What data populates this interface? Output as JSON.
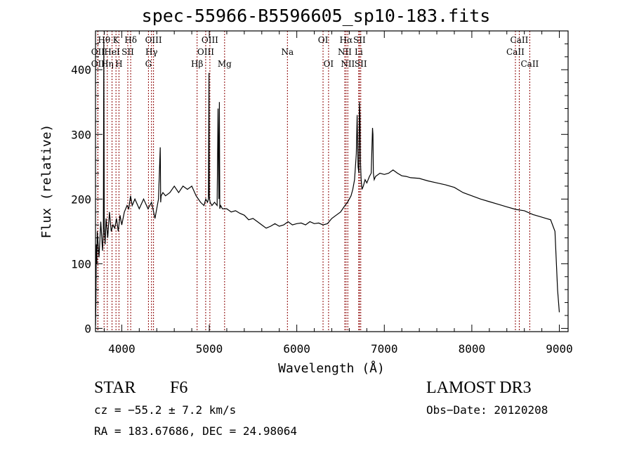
{
  "chart_data": {
    "type": "line",
    "title": "spec-55966-B5596605_sp10-183.fits",
    "xlabel": "Wavelength (Å)",
    "ylabel": "Flux (relative)",
    "xlim": [
      3700,
      9100
    ],
    "ylim": [
      -5,
      460
    ],
    "x_ticks": [
      4000,
      5000,
      6000,
      7000,
      8000,
      9000
    ],
    "y_ticks": [
      0,
      100,
      200,
      300,
      400
    ],
    "grid": false,
    "legend": "none",
    "series": [
      {
        "x": [
          3700,
          3705,
          3710,
          3715,
          3720,
          3740,
          3760,
          3780,
          3790,
          3795,
          3800,
          3810,
          3820,
          3840,
          3860,
          3880,
          3900,
          3920,
          3940,
          3960,
          3980,
          4000,
          4030,
          4060,
          4080,
          4100,
          4120,
          4150,
          4200,
          4250,
          4300,
          4340,
          4380,
          4420,
          4440,
          4445,
          4450,
          4470,
          4500,
          4550,
          4600,
          4650,
          4700,
          4750,
          4800,
          4850,
          4900,
          4940,
          4960,
          4980,
          4990,
          4997,
          5000,
          5003,
          5010,
          5030,
          5060,
          5090,
          5100,
          5110,
          5115,
          5120,
          5130,
          5150,
          5200,
          5250,
          5300,
          5350,
          5400,
          5450,
          5500,
          5550,
          5600,
          5650,
          5700,
          5750,
          5800,
          5850,
          5900,
          5950,
          6000,
          6050,
          6100,
          6150,
          6200,
          6250,
          6300,
          6350,
          6400,
          6450,
          6500,
          6550,
          6580,
          6600,
          6620,
          6640,
          6660,
          6680,
          6690,
          6700,
          6710,
          6716,
          6722,
          6728,
          6735,
          6745,
          6760,
          6780,
          6800,
          6830,
          6850,
          6865,
          6870,
          6875,
          6885,
          6900,
          6950,
          7000,
          7050,
          7100,
          7150,
          7200,
          7250,
          7300,
          7400,
          7500,
          7600,
          7700,
          7800,
          7900,
          8000,
          8100,
          8200,
          8300,
          8400,
          8500,
          8600,
          8700,
          8800,
          8850,
          8900,
          8950,
          8980,
          9000
        ],
        "y": [
          5,
          40,
          130,
          100,
          150,
          110,
          165,
          120,
          150,
          445,
          155,
          130,
          170,
          140,
          180,
          150,
          160,
          155,
          170,
          150,
          175,
          160,
          180,
          190,
          185,
          205,
          190,
          200,
          185,
          200,
          185,
          195,
          170,
          200,
          280,
          195,
          205,
          210,
          205,
          210,
          220,
          210,
          220,
          215,
          220,
          205,
          195,
          190,
          200,
          195,
          200,
          395,
          205,
          200,
          195,
          190,
          195,
          190,
          340,
          200,
          350,
          185,
          190,
          185,
          185,
          180,
          182,
          178,
          175,
          168,
          170,
          165,
          160,
          155,
          158,
          162,
          158,
          160,
          165,
          160,
          162,
          163,
          160,
          165,
          162,
          163,
          160,
          162,
          170,
          175,
          180,
          190,
          195,
          200,
          205,
          215,
          230,
          270,
          330,
          250,
          240,
          350,
          330,
          255,
          230,
          215,
          220,
          230,
          225,
          235,
          240,
          310,
          300,
          240,
          230,
          235,
          240,
          238,
          240,
          245,
          240,
          236,
          235,
          233,
          232,
          228,
          225,
          222,
          218,
          210,
          205,
          200,
          196,
          192,
          188,
          184,
          182,
          176,
          172,
          170,
          168,
          150,
          60,
          25
        ]
      }
    ],
    "annotations": [
      {
        "label": "Hθ",
        "x": 3798,
        "row": 1,
        "color": "#8b0000"
      },
      {
        "label": "OII",
        "x": 3727,
        "row": 2,
        "color": "#8b0000"
      },
      {
        "label": "OII",
        "x": 3727,
        "row": 3,
        "color": "#8b0000"
      },
      {
        "label": "Hη",
        "x": 3835,
        "row": 3,
        "color": "#8b0000"
      },
      {
        "label": "K",
        "x": 3934,
        "row": 1,
        "color": "#8b0000"
      },
      {
        "label": "HeI",
        "x": 3889,
        "row": 2,
        "color": "#8b0000"
      },
      {
        "label": "SII",
        "x": 4069,
        "row": 2,
        "color": "#8b0000"
      },
      {
        "label": "H",
        "x": 3968,
        "row": 3,
        "color": "#8b0000"
      },
      {
        "label": "Hδ",
        "x": 4102,
        "row": 1,
        "color": "#8b0000"
      },
      {
        "label": "OIII",
        "x": 4363,
        "row": 1,
        "color": "#8b0000"
      },
      {
        "label": "Hγ",
        "x": 4340,
        "row": 2,
        "color": "#8b0000"
      },
      {
        "label": "G",
        "x": 4305,
        "row": 3,
        "color": "#8b0000"
      },
      {
        "label": "OIII",
        "x": 5007,
        "row": 1,
        "color": "#8b0000"
      },
      {
        "label": "OIII",
        "x": 4959,
        "row": 2,
        "color": "#8b0000"
      },
      {
        "label": "Hβ",
        "x": 4861,
        "row": 3,
        "color": "#8b0000"
      },
      {
        "label": "Mg",
        "x": 5175,
        "row": 3,
        "color": "#8b0000"
      },
      {
        "label": "Na",
        "x": 5893,
        "row": 2,
        "color": "#8b0000"
      },
      {
        "label": "OI",
        "x": 6300,
        "row": 1,
        "color": "#8b0000"
      },
      {
        "label": "OI",
        "x": 6363,
        "row": 3,
        "color": "#8b0000"
      },
      {
        "label": "Hα",
        "x": 6563,
        "row": 1,
        "color": "#8b0000"
      },
      {
        "label": "SII",
        "x": 6716,
        "row": 1,
        "color": "#8b0000"
      },
      {
        "label": "NII",
        "x": 6548,
        "row": 2,
        "color": "#8b0000"
      },
      {
        "label": "Li",
        "x": 6708,
        "row": 2,
        "color": "#8b0000"
      },
      {
        "label": "NII",
        "x": 6583,
        "row": 3,
        "color": "#8b0000"
      },
      {
        "label": "SII",
        "x": 6731,
        "row": 3,
        "color": "#8b0000"
      },
      {
        "label": "CaII",
        "x": 8542,
        "row": 1,
        "color": "#8b0000"
      },
      {
        "label": "CaII",
        "x": 8498,
        "row": 2,
        "color": "#8b0000"
      },
      {
        "label": "CaII",
        "x": 8662,
        "row": 3,
        "color": "#8b0000"
      }
    ]
  },
  "info": {
    "class": "STAR",
    "subclass": "F6",
    "survey": "LAMOST DR3",
    "cz": "cz = −55.2 ± 7.2 km/s",
    "obs_date": "Obs−Date: 20120208",
    "coords": "RA = 183.67686, DEC =  24.98064"
  }
}
